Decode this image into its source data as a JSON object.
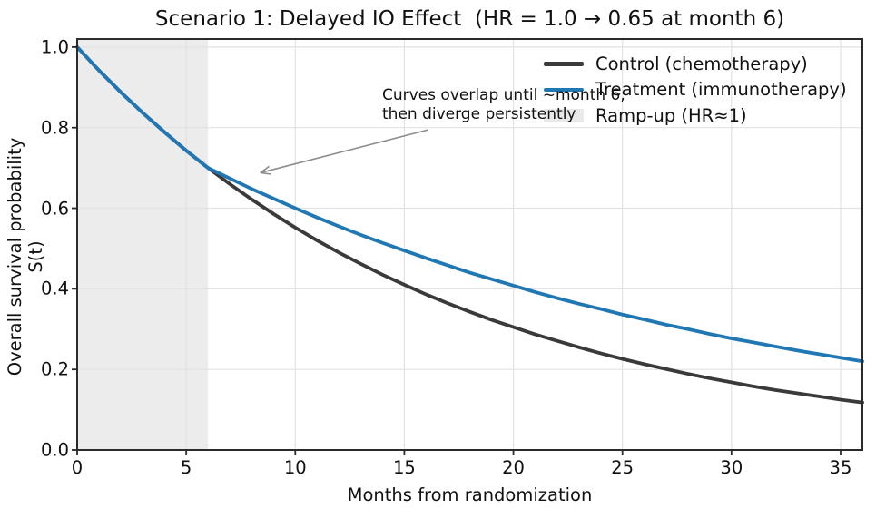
{
  "chart_data": {
    "type": "line",
    "title": "Scenario 1: Delayed IO Effect  (HR = 1.0 → 0.65 at month 6)",
    "xlabel": "Months from randomization",
    "ylabel": "Overall survival probability S(t)",
    "xlim": [
      0,
      36
    ],
    "ylim": [
      0,
      1.02
    ],
    "grid": true,
    "legend_position": "upper right",
    "xticks": [
      0,
      5,
      10,
      15,
      20,
      25,
      30,
      35
    ],
    "xtick_labels": [
      "0",
      "5",
      "10",
      "15",
      "20",
      "25",
      "30",
      "35"
    ],
    "yticks": [
      0.0,
      0.2,
      0.4,
      0.6,
      0.8,
      1.0
    ],
    "ytick_labels": [
      "0.0",
      "0.2",
      "0.4",
      "0.6",
      "0.8",
      "1.0"
    ],
    "x": [
      0,
      1,
      2,
      3,
      4,
      5,
      6,
      7,
      8,
      9,
      10,
      11,
      12,
      13,
      14,
      15,
      16,
      17,
      18,
      19,
      20,
      21,
      22,
      23,
      24,
      25,
      26,
      27,
      28,
      29,
      30,
      31,
      32,
      33,
      34,
      35,
      36
    ],
    "series": [
      {
        "name": "Control (chemotherapy)",
        "color": "#3a3a3a",
        "values": [
          1.0,
          0.942,
          0.888,
          0.837,
          0.789,
          0.743,
          0.7,
          0.66,
          0.622,
          0.586,
          0.552,
          0.52,
          0.49,
          0.462,
          0.435,
          0.41,
          0.386,
          0.364,
          0.343,
          0.323,
          0.305,
          0.287,
          0.271,
          0.255,
          0.24,
          0.226,
          0.213,
          0.201,
          0.189,
          0.178,
          0.168,
          0.158,
          0.149,
          0.141,
          0.133,
          0.125,
          0.118
        ]
      },
      {
        "name": "Treatment (immunotherapy)",
        "color": "#1f77b4",
        "values": [
          1.0,
          0.942,
          0.888,
          0.837,
          0.789,
          0.743,
          0.7,
          0.674,
          0.648,
          0.624,
          0.6,
          0.577,
          0.555,
          0.534,
          0.514,
          0.495,
          0.476,
          0.458,
          0.44,
          0.424,
          0.408,
          0.392,
          0.377,
          0.363,
          0.35,
          0.336,
          0.324,
          0.311,
          0.3,
          0.288,
          0.277,
          0.267,
          0.257,
          0.247,
          0.238,
          0.229,
          0.22
        ]
      }
    ],
    "shaded_span": {
      "label": "Ramp-up (HR≈1)",
      "x0": 0,
      "x1": 6,
      "color": "#ececec"
    },
    "annotation": {
      "line1": "Curves overlap until ~month 6,",
      "line2": "then diverge persistently",
      "arrow_target_month": 8.4,
      "arrow_target_value": 0.688
    },
    "colors": {
      "grid": "#e2e2e2",
      "spine": "#2b2b2b",
      "arrow": "#8c8c8c",
      "shade_swatch": "#e9e9e9"
    }
  },
  "legend": {
    "items": [
      {
        "label": "Control (chemotherapy)",
        "color": "#3a3a3a",
        "kind": "line"
      },
      {
        "label": "Treatment (immunotherapy)",
        "color": "#1f77b4",
        "kind": "line"
      },
      {
        "label": "Ramp-up (HR≈1)",
        "color": "#e9e9e9",
        "kind": "patch"
      }
    ]
  }
}
